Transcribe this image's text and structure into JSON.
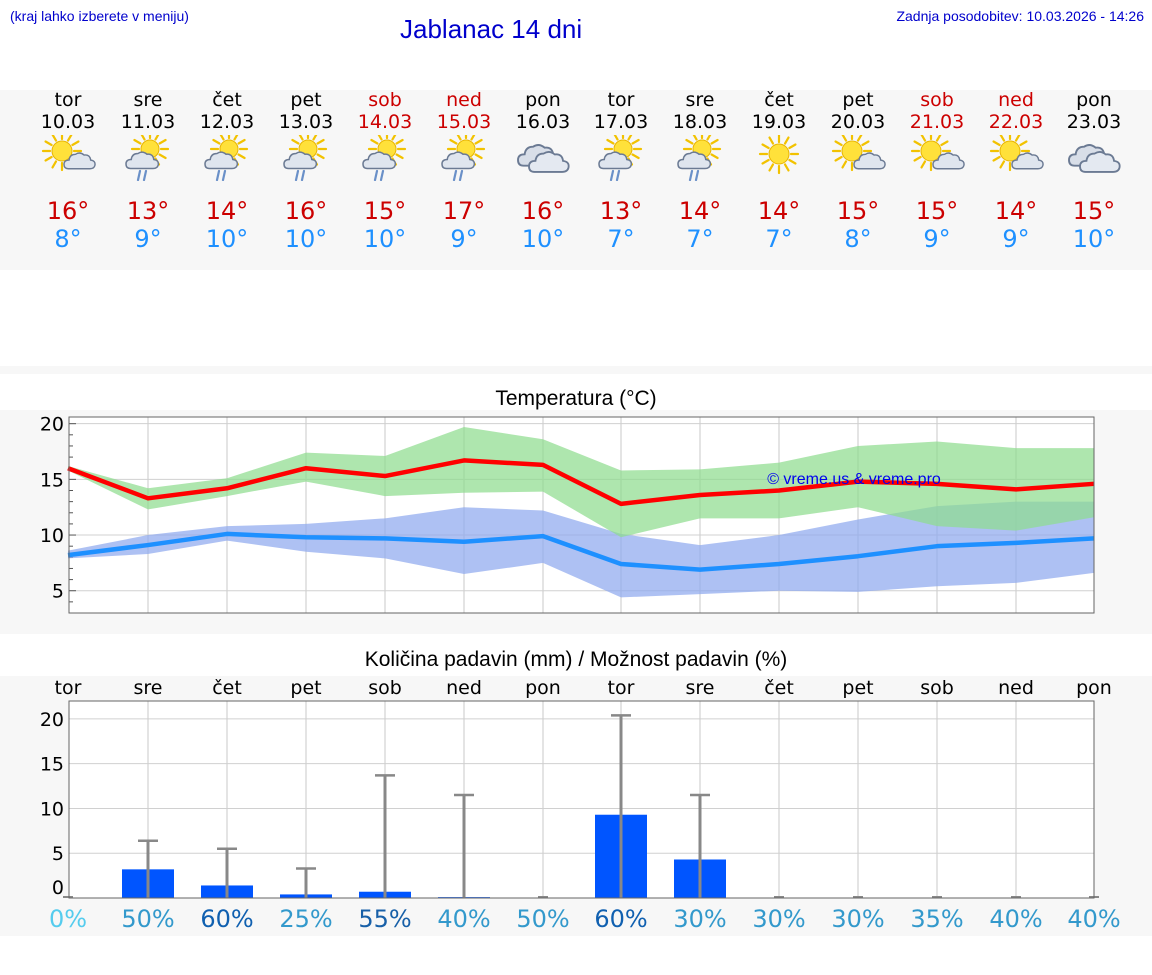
{
  "header": {
    "hint": "(kraj lahko izberete v meniju)",
    "title": "Jablanac 14 dni",
    "updated": "Zadnja posodobitev: 10.03.2026 - 14:26"
  },
  "days": [
    {
      "name": "tor",
      "date": "10.03",
      "weekend": false,
      "icon": "sun-cloud-icon",
      "tmax": "16°",
      "tmin": "8°"
    },
    {
      "name": "sre",
      "date": "11.03",
      "weekend": false,
      "icon": "sun-cloud-rain-icon",
      "tmax": "13°",
      "tmin": "9°"
    },
    {
      "name": "čet",
      "date": "12.03",
      "weekend": false,
      "icon": "sun-cloud-rain-icon",
      "tmax": "14°",
      "tmin": "10°"
    },
    {
      "name": "pet",
      "date": "13.03",
      "weekend": false,
      "icon": "sun-cloud-rain-icon",
      "tmax": "16°",
      "tmin": "10°"
    },
    {
      "name": "sob",
      "date": "14.03",
      "weekend": true,
      "icon": "sun-cloud-rain-icon",
      "tmax": "15°",
      "tmin": "10°"
    },
    {
      "name": "ned",
      "date": "15.03",
      "weekend": true,
      "icon": "sun-cloud-rain-icon",
      "tmax": "17°",
      "tmin": "9°"
    },
    {
      "name": "pon",
      "date": "16.03",
      "weekend": false,
      "icon": "cloudy-icon",
      "tmax": "16°",
      "tmin": "10°"
    },
    {
      "name": "tor",
      "date": "17.03",
      "weekend": false,
      "icon": "sun-cloud-rain-icon",
      "tmax": "13°",
      "tmin": "7°"
    },
    {
      "name": "sre",
      "date": "18.03",
      "weekend": false,
      "icon": "sun-cloud-rain-icon",
      "tmax": "14°",
      "tmin": "7°"
    },
    {
      "name": "čet",
      "date": "19.03",
      "weekend": false,
      "icon": "sun-icon",
      "tmax": "14°",
      "tmin": "7°"
    },
    {
      "name": "pet",
      "date": "20.03",
      "weekend": false,
      "icon": "sun-cloud-icon",
      "tmax": "15°",
      "tmin": "8°"
    },
    {
      "name": "sob",
      "date": "21.03",
      "weekend": true,
      "icon": "sun-cloud-icon",
      "tmax": "15°",
      "tmin": "9°"
    },
    {
      "name": "ned",
      "date": "22.03",
      "weekend": true,
      "icon": "sun-cloud-icon",
      "tmax": "14°",
      "tmin": "9°"
    },
    {
      "name": "pon",
      "date": "23.03",
      "weekend": false,
      "icon": "cloudy-icon",
      "tmax": "15°",
      "tmin": "10°"
    }
  ],
  "colors": {
    "max_line": "#ff0000",
    "min_line": "#1e90ff",
    "max_band": "#8fdc8f",
    "min_band": "#8fa9ee",
    "bars": "#0055ff",
    "error": "#888888",
    "weekend": "#cc0000"
  },
  "chart_data": [
    {
      "type": "line",
      "title": "Temperatura (°C)",
      "watermark": "© vreme.us & vreme.pro",
      "ylim": [
        3,
        20.6
      ],
      "yticks": [
        5,
        10,
        15,
        20
      ],
      "categories": [
        "10.03",
        "11.03",
        "12.03",
        "13.03",
        "14.03",
        "15.03",
        "16.03",
        "17.03",
        "18.03",
        "19.03",
        "20.03",
        "21.03",
        "22.03",
        "23.03"
      ],
      "series": [
        {
          "name": "max",
          "values": [
            16.0,
            13.3,
            14.2,
            16.0,
            15.3,
            16.7,
            16.3,
            12.8,
            13.6,
            14.0,
            14.8,
            14.6,
            14.1,
            14.6
          ]
        },
        {
          "name": "max_low",
          "values": [
            15.8,
            12.3,
            13.5,
            14.8,
            13.5,
            13.8,
            13.9,
            9.8,
            11.5,
            11.5,
            12.5,
            10.8,
            10.4,
            11.6
          ]
        },
        {
          "name": "max_high",
          "values": [
            16.2,
            14.2,
            15.1,
            17.4,
            17.1,
            19.7,
            18.6,
            15.8,
            15.9,
            16.5,
            18.0,
            18.4,
            17.8,
            17.8
          ]
        },
        {
          "name": "min",
          "values": [
            8.2,
            9.1,
            10.1,
            9.8,
            9.7,
            9.4,
            9.9,
            7.4,
            6.9,
            7.4,
            8.1,
            9.0,
            9.3,
            9.7
          ]
        },
        {
          "name": "min_low",
          "values": [
            7.9,
            8.3,
            9.5,
            8.5,
            7.9,
            6.5,
            7.5,
            4.4,
            4.7,
            5.0,
            4.9,
            5.4,
            5.7,
            6.6
          ]
        },
        {
          "name": "min_high",
          "values": [
            8.6,
            10.0,
            10.8,
            11.0,
            11.5,
            12.5,
            12.2,
            10.1,
            9.1,
            10.0,
            11.4,
            12.6,
            13.0,
            13.0
          ]
        }
      ]
    },
    {
      "type": "bar",
      "title": "Količina padavin (mm) / Možnost padavin (%)",
      "ylim": [
        0,
        22
      ],
      "yticks": [
        0,
        5,
        10,
        15,
        20
      ],
      "categories": [
        "tor",
        "sre",
        "čet",
        "pet",
        "sob",
        "ned",
        "pon",
        "tor",
        "sre",
        "čet",
        "pet",
        "sob",
        "ned",
        "pon"
      ],
      "amount_mm": [
        0,
        3.2,
        1.4,
        0.4,
        0.7,
        0.1,
        0,
        9.3,
        4.3,
        0,
        0,
        0,
        0,
        0
      ],
      "amount_max_mm": [
        0,
        6.4,
        5.5,
        3.3,
        13.7,
        11.5,
        0,
        20.4,
        11.5,
        0,
        0,
        0,
        0,
        0
      ],
      "probability": [
        "0%",
        "50%",
        "60%",
        "25%",
        "55%",
        "40%",
        "50%",
        "60%",
        "30%",
        "30%",
        "30%",
        "35%",
        "40%",
        "40%"
      ],
      "probability_values": [
        0,
        50,
        60,
        25,
        55,
        40,
        50,
        60,
        30,
        30,
        30,
        35,
        40,
        40
      ]
    }
  ]
}
